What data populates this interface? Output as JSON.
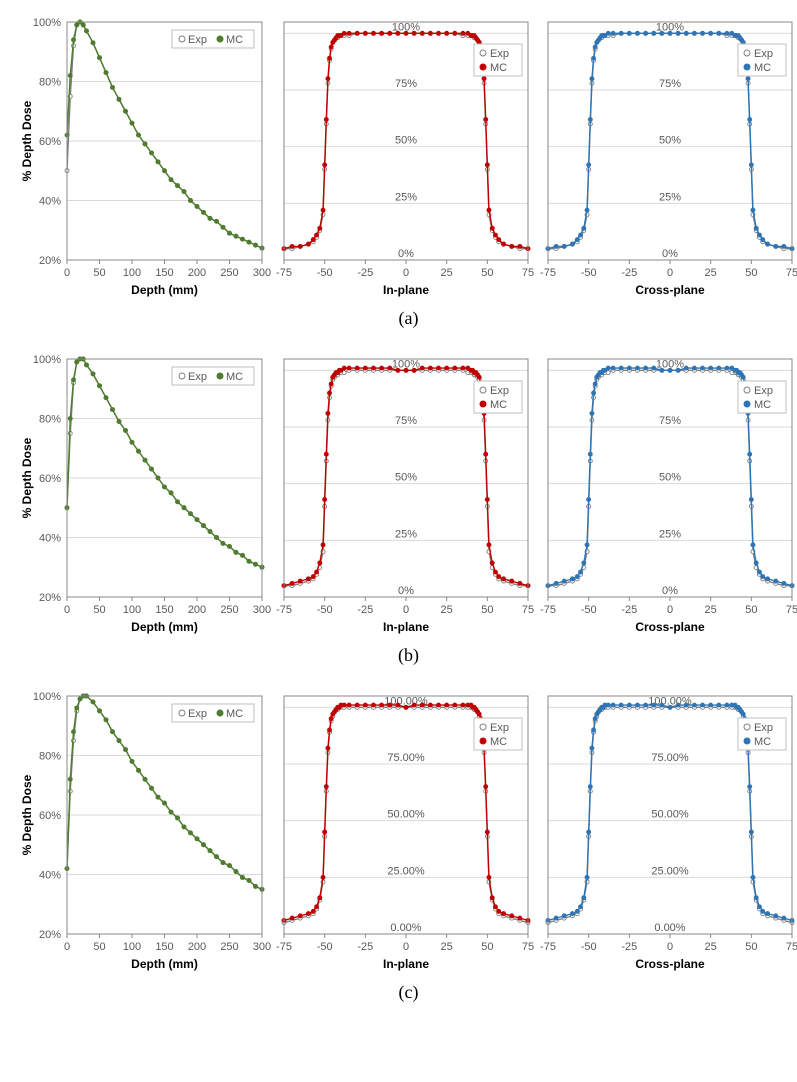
{
  "rows": [
    {
      "caption": "(a)"
    },
    {
      "caption": "(b)"
    },
    {
      "caption": "(c)"
    }
  ],
  "pdd": {
    "xlabel": "Depth (mm)",
    "ylabel": "% Depth Dose",
    "xticks": [
      0,
      50,
      100,
      150,
      200,
      250,
      300
    ],
    "yticks": [
      20,
      40,
      60,
      80,
      100
    ],
    "exp_color": "#7f7f7f",
    "mc_color": "#4f7d2e",
    "legend": {
      "exp": "Exp",
      "mc": "MC"
    },
    "sets": [
      {
        "x": [
          0,
          5,
          10,
          15,
          20,
          25,
          30,
          40,
          50,
          60,
          70,
          80,
          90,
          100,
          110,
          120,
          130,
          140,
          150,
          160,
          170,
          180,
          190,
          200,
          210,
          220,
          230,
          240,
          250,
          260,
          270,
          280,
          290,
          300
        ],
        "exp": [
          50,
          75,
          92,
          99,
          100,
          99,
          97,
          93,
          88,
          83,
          78,
          74,
          70,
          66,
          62,
          59,
          56,
          53,
          50,
          47,
          45,
          43,
          40,
          38,
          36,
          34,
          33,
          31,
          29,
          28,
          27,
          26,
          25,
          24
        ],
        "mc": [
          62,
          82,
          94,
          99,
          100,
          99,
          97,
          93,
          88,
          83,
          78,
          74,
          70,
          66,
          62,
          59,
          56,
          53,
          50,
          47,
          45,
          43,
          40,
          38,
          36,
          34,
          33,
          31,
          29,
          28,
          27,
          26,
          25,
          24
        ]
      },
      {
        "x": [
          0,
          5,
          10,
          15,
          20,
          25,
          30,
          40,
          50,
          60,
          70,
          80,
          90,
          100,
          110,
          120,
          130,
          140,
          150,
          160,
          170,
          180,
          190,
          200,
          210,
          220,
          230,
          240,
          250,
          260,
          270,
          280,
          290,
          300
        ],
        "exp": [
          50,
          75,
          92,
          99,
          100,
          100,
          98,
          95,
          91,
          87,
          83,
          79,
          76,
          72,
          69,
          66,
          63,
          60,
          57,
          55,
          52,
          50,
          48,
          46,
          44,
          42,
          40,
          38,
          37,
          35,
          34,
          32,
          31,
          30
        ],
        "mc": [
          50,
          80,
          93,
          99,
          100,
          100,
          98,
          95,
          91,
          87,
          83,
          79,
          76,
          72,
          69,
          66,
          63,
          60,
          57,
          55,
          52,
          50,
          48,
          46,
          44,
          42,
          40,
          38,
          37,
          35,
          34,
          32,
          31,
          30
        ]
      },
      {
        "x": [
          0,
          5,
          10,
          15,
          20,
          25,
          30,
          40,
          50,
          60,
          70,
          80,
          90,
          100,
          110,
          120,
          130,
          140,
          150,
          160,
          170,
          180,
          190,
          200,
          210,
          220,
          230,
          240,
          250,
          260,
          270,
          280,
          290,
          300
        ],
        "exp": [
          42,
          68,
          85,
          95,
          99,
          100,
          100,
          98,
          95,
          92,
          88,
          85,
          82,
          78,
          75,
          72,
          69,
          66,
          64,
          61,
          59,
          56,
          54,
          52,
          50,
          48,
          46,
          44,
          43,
          41,
          39,
          38,
          36,
          35
        ],
        "mc": [
          42,
          72,
          88,
          96,
          99,
          100,
          100,
          98,
          95,
          92,
          88,
          85,
          82,
          78,
          75,
          72,
          69,
          66,
          64,
          61,
          59,
          56,
          54,
          52,
          50,
          48,
          46,
          44,
          43,
          41,
          39,
          38,
          36,
          35
        ]
      }
    ]
  },
  "profile": {
    "xticks": [
      -75,
      -50,
      -25,
      0,
      25,
      50,
      75
    ],
    "yticks_pct": [
      "0%",
      "25%",
      "50%",
      "75%",
      "100%"
    ],
    "yticks_pct2": [
      "0.00%",
      "25.00%",
      "50.00%",
      "75.00%",
      "100.00%"
    ],
    "labels": {
      "inplane": "In-plane",
      "crossplane": "Cross-plane"
    },
    "exp_color": "#7f7f7f",
    "inplane_color": "#c00000",
    "crossplane_color": "#2e75b6",
    "legend": {
      "exp": "Exp",
      "mc": "MC"
    },
    "x": [
      -75,
      -70,
      -65,
      -60,
      -57,
      -55,
      -53,
      -51,
      -50,
      -49,
      -48,
      -47,
      -46,
      -45,
      -44,
      -43,
      -42,
      -41,
      -40,
      -38,
      -35,
      -30,
      -25,
      -20,
      -15,
      -10,
      -5,
      0,
      5,
      10,
      15,
      20,
      25,
      30,
      35,
      38,
      40,
      41,
      42,
      43,
      44,
      45,
      46,
      47,
      48,
      49,
      50,
      51,
      53,
      55,
      57,
      60,
      65,
      70,
      75
    ],
    "sets": [
      {
        "exp": [
          5,
          5,
          6,
          7,
          8,
          10,
          13,
          20,
          40,
          60,
          78,
          88,
          93,
          96,
          97,
          98,
          98,
          99,
          99,
          99,
          99,
          100,
          100,
          100,
          100,
          100,
          100,
          100,
          100,
          100,
          100,
          100,
          100,
          100,
          99,
          99,
          99,
          99,
          98,
          98,
          97,
          96,
          93,
          88,
          78,
          60,
          40,
          20,
          13,
          10,
          8,
          7,
          6,
          5,
          5
        ],
        "mc": [
          5,
          6,
          6,
          7,
          9,
          11,
          14,
          22,
          42,
          62,
          80,
          89,
          94,
          96,
          97,
          98,
          99,
          99,
          99,
          100,
          100,
          100,
          100,
          100,
          100,
          100,
          100,
          100,
          100,
          100,
          100,
          100,
          100,
          100,
          100,
          100,
          99,
          99,
          99,
          98,
          97,
          96,
          94,
          89,
          80,
          62,
          42,
          22,
          14,
          11,
          9,
          7,
          6,
          6,
          5
        ],
        "ytick_mode": "pct"
      },
      {
        "exp": [
          5,
          5,
          6,
          7,
          8,
          10,
          13,
          20,
          40,
          60,
          78,
          88,
          93,
          96,
          97,
          98,
          98,
          99,
          99,
          99,
          100,
          100,
          100,
          100,
          100,
          100,
          100,
          100,
          100,
          100,
          100,
          100,
          100,
          100,
          100,
          99,
          99,
          99,
          98,
          98,
          97,
          96,
          93,
          88,
          78,
          60,
          40,
          20,
          13,
          10,
          8,
          7,
          6,
          5,
          5
        ],
        "mc": [
          5,
          6,
          7,
          8,
          9,
          11,
          15,
          23,
          43,
          63,
          81,
          90,
          94,
          97,
          98,
          99,
          99,
          100,
          100,
          101,
          101,
          101,
          101,
          101,
          101,
          101,
          100,
          100,
          100,
          101,
          101,
          101,
          101,
          101,
          101,
          101,
          100,
          100,
          99,
          99,
          98,
          97,
          94,
          90,
          81,
          63,
          43,
          23,
          15,
          11,
          9,
          8,
          7,
          6,
          5
        ],
        "ytick_mode": "pct"
      },
      {
        "exp": [
          5,
          6,
          7,
          8,
          9,
          11,
          15,
          23,
          43,
          63,
          80,
          89,
          94,
          96,
          98,
          99,
          99,
          100,
          100,
          100,
          100,
          100,
          100,
          100,
          100,
          100,
          100,
          100,
          100,
          100,
          100,
          100,
          100,
          100,
          100,
          100,
          100,
          100,
          99,
          99,
          98,
          96,
          94,
          89,
          80,
          63,
          43,
          23,
          15,
          11,
          9,
          8,
          7,
          6,
          5
        ],
        "mc": [
          6,
          7,
          8,
          9,
          10,
          12,
          16,
          25,
          45,
          65,
          82,
          90,
          95,
          97,
          98,
          99,
          100,
          100,
          101,
          101,
          101,
          101,
          101,
          101,
          101,
          101,
          101,
          100,
          101,
          101,
          101,
          101,
          101,
          101,
          101,
          101,
          101,
          100,
          100,
          99,
          98,
          97,
          95,
          90,
          82,
          65,
          45,
          25,
          16,
          12,
          10,
          9,
          8,
          7,
          6
        ],
        "ytick_mode": "pct2"
      }
    ]
  },
  "layout": {
    "pdd_w": 255,
    "pdd_h": 290,
    "prof_w": 260,
    "prof_h": 290,
    "marker_r": 2.0
  }
}
